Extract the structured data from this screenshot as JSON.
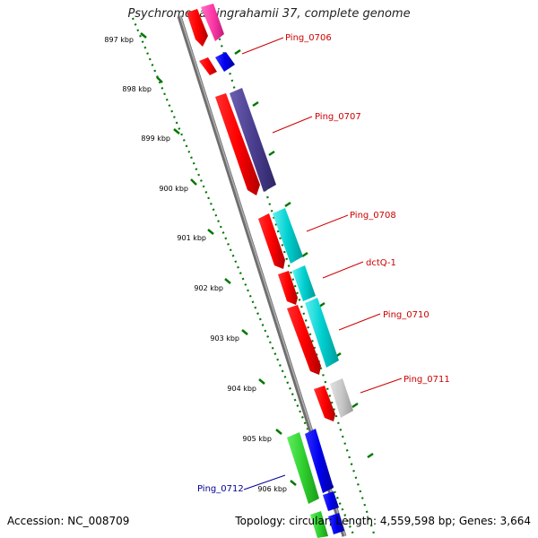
{
  "title": "Psychromonas ingrahamii 37, complete genome",
  "footer": {
    "accession": "Accession: NC_008709",
    "summary": "Topology: circular; Length: 4,559,598 bp; Genes: 3,664"
  },
  "colors": {
    "backbone": "#808080",
    "ruler": "#007700",
    "label_red": "#cc0000",
    "label_blue": "#000099"
  },
  "ruler_labels": [
    "897 kbp",
    "898 kbp",
    "899 kbp",
    "900 kbp",
    "901 kbp",
    "902 kbp",
    "903 kbp",
    "904 kbp",
    "905 kbp",
    "906 kbp"
  ],
  "gene_labels": [
    {
      "name": "Ping_0706",
      "color": "#cc0000"
    },
    {
      "name": "Ping_0707",
      "color": "#cc0000"
    },
    {
      "name": "Ping_0708",
      "color": "#cc0000"
    },
    {
      "name": "dctQ-1",
      "color": "#cc0000"
    },
    {
      "name": "Ping_0710",
      "color": "#cc0000"
    },
    {
      "name": "Ping_0711",
      "color": "#cc0000"
    },
    {
      "name": "Ping_0712",
      "color": "#000099"
    }
  ]
}
